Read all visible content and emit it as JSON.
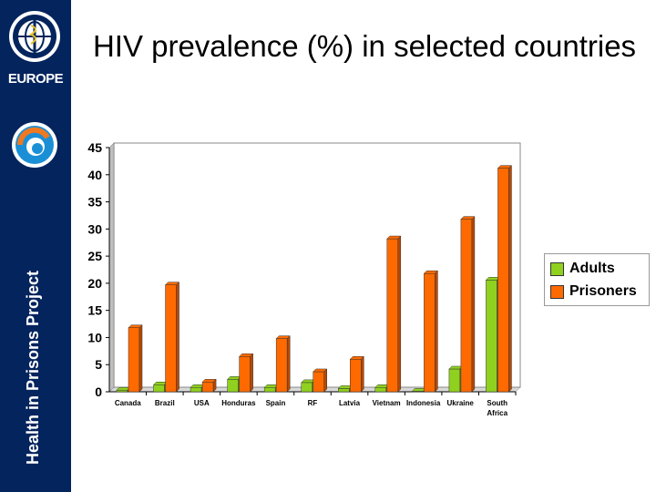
{
  "sidebar": {
    "brand": "EUROPE",
    "project_name": "Health in Prisons Project"
  },
  "colors": {
    "sidebar": "#04245e",
    "adults": "#8fd11e",
    "prisoners": "#ff6a00"
  },
  "chart_data": {
    "type": "bar",
    "title": "HIV prevalence (%) in selected countries",
    "xlabel": "",
    "ylabel": "",
    "ylim": [
      0,
      45
    ],
    "yticks": [
      0,
      5,
      10,
      15,
      20,
      25,
      30,
      35,
      40,
      45
    ],
    "grid": false,
    "legend_position": "right",
    "categories": [
      "Canada",
      "Brazil",
      "USA",
      "Honduras",
      "Spain",
      "RF",
      "Latvia",
      "Vietnam",
      "Indonesia",
      "Ukraine",
      "South Africa"
    ],
    "series": [
      {
        "name": "Adults",
        "values": [
          0.3,
          1.3,
          0.8,
          2.3,
          0.8,
          1.7,
          0.6,
          0.8,
          0.1,
          4.2,
          20.6
        ]
      },
      {
        "name": "Prisoners",
        "values": [
          11.8,
          19.7,
          1.8,
          6.5,
          9.8,
          3.7,
          6.0,
          28.2,
          21.8,
          31.8,
          41.2
        ]
      }
    ]
  }
}
